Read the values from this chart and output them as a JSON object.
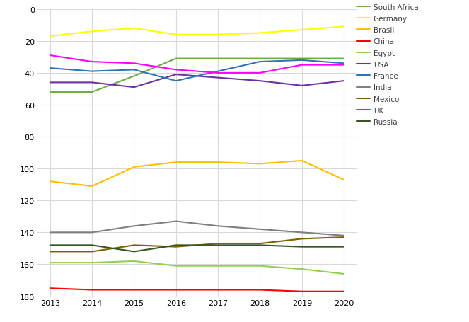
{
  "years": [
    2013,
    2014,
    2015,
    2016,
    2017,
    2018,
    2019,
    2020
  ],
  "series": {
    "South Africa": {
      "color": "#70ad47",
      "values": [
        52,
        52,
        42,
        31,
        31,
        31,
        31,
        31
      ]
    },
    "Germany": {
      "color": "#ffff00",
      "values": [
        17,
        14,
        12,
        16,
        16,
        15,
        13,
        11
      ]
    },
    "Brasil": {
      "color": "#ffc000",
      "values": [
        108,
        111,
        99,
        96,
        96,
        97,
        95,
        107
      ]
    },
    "China": {
      "color": "#ff0000",
      "values": [
        175,
        176,
        176,
        176,
        176,
        176,
        177,
        177
      ]
    },
    "Egypt": {
      "color": "#92d050",
      "values": [
        159,
        159,
        158,
        161,
        161,
        161,
        163,
        166
      ]
    },
    "USA": {
      "color": "#7030a0",
      "values": [
        46,
        46,
        49,
        41,
        43,
        45,
        48,
        45
      ]
    },
    "France": {
      "color": "#2e75b6",
      "values": [
        37,
        39,
        38,
        45,
        39,
        33,
        32,
        34
      ]
    },
    "India": {
      "color": "#7f7f7f",
      "values": [
        140,
        140,
        136,
        133,
        136,
        138,
        140,
        142
      ]
    },
    "Mexico": {
      "color": "#7f6000",
      "values": [
        152,
        152,
        148,
        149,
        147,
        147,
        144,
        143
      ]
    },
    "UK": {
      "color": "#ff00ff",
      "values": [
        29,
        33,
        34,
        38,
        40,
        40,
        35,
        35
      ]
    },
    "Russia": {
      "color": "#375623",
      "values": [
        148,
        148,
        152,
        148,
        148,
        148,
        149,
        149
      ]
    }
  },
  "ylim": [
    180,
    0
  ],
  "yticks": [
    0,
    20,
    40,
    60,
    80,
    100,
    120,
    140,
    160,
    180
  ],
  "xticks": [
    2013,
    2014,
    2015,
    2016,
    2017,
    2018,
    2019,
    2020
  ],
  "legend_order": [
    "South Africa",
    "Germany",
    "Brasil",
    "China",
    "Egypt",
    "USA",
    "France",
    "India",
    "Mexico",
    "UK",
    "Russia"
  ],
  "bg_color": "#ffffff",
  "grid_color": "#d9d9d9",
  "linewidth": 1.5,
  "legend_fontsize": 7.5,
  "tick_fontsize": 8
}
